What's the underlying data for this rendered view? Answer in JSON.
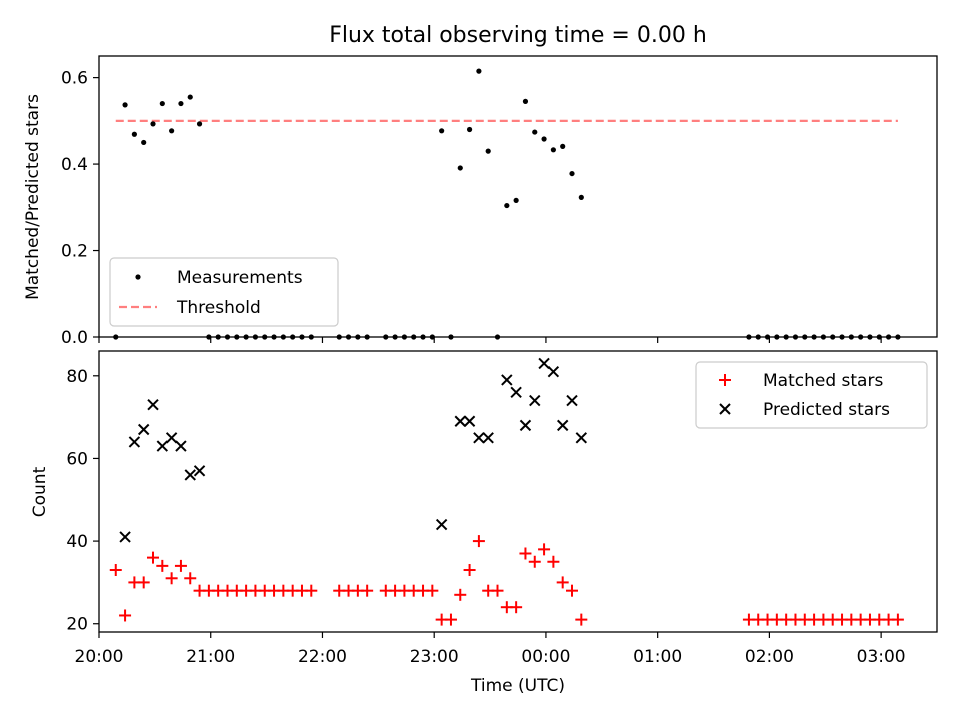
{
  "chart_data": [
    {
      "type": "scatter",
      "title": "Flux total observing time = 0.00 h",
      "xlabel": "",
      "ylabel": "Matched/Predicted stars",
      "ylim": [
        0,
        0.65
      ],
      "yticks": [
        0.0,
        0.2,
        0.4,
        0.6
      ],
      "ytick_labels": [
        "0.0",
        "0.2",
        "0.4",
        "0.6"
      ],
      "xlim": [
        "20:00",
        "03:30"
      ],
      "legend": "lower-left",
      "series": [
        {
          "name": "Measurements",
          "color": "#000000",
          "x": [
            "20:09",
            "20:14",
            "20:19",
            "20:24",
            "20:29",
            "20:34",
            "20:39",
            "20:44",
            "20:49",
            "20:54",
            "20:59",
            "21:04",
            "21:09",
            "21:14",
            "21:19",
            "21:24",
            "21:29",
            "21:34",
            "21:39",
            "21:44",
            "21:49",
            "21:54",
            "22:09",
            "22:14",
            "22:19",
            "22:24",
            "22:34",
            "22:39",
            "22:44",
            "22:49",
            "22:54",
            "22:59",
            "23:04",
            "23:09",
            "23:14",
            "23:19",
            "23:24",
            "23:29",
            "23:34",
            "23:39",
            "23:44",
            "23:49",
            "23:54",
            "23:59",
            "00:04",
            "00:09",
            "00:14",
            "00:19",
            "01:49",
            "01:54",
            "01:59",
            "02:04",
            "02:09",
            "02:14",
            "02:19",
            "02:24",
            "02:29",
            "02:34",
            "02:39",
            "02:44",
            "02:49",
            "02:54",
            "02:59",
            "03:04",
            "03:09"
          ],
          "y": [
            0.0,
            0.537,
            0.469,
            0.45,
            0.493,
            0.54,
            0.477,
            0.54,
            0.555,
            0.493,
            0.0,
            0.0,
            0.0,
            0.0,
            0.0,
            0.0,
            0.0,
            0.0,
            0.0,
            0.0,
            0.0,
            0.0,
            0.0,
            0.0,
            0.0,
            0.0,
            0.0,
            0.0,
            0.0,
            0.0,
            0.0,
            0.0,
            0.477,
            0.0,
            0.391,
            0.48,
            0.615,
            0.43,
            0.0,
            0.304,
            0.316,
            0.545,
            0.474,
            0.458,
            0.433,
            0.441,
            0.378,
            0.323,
            0.0,
            0.0,
            0.0,
            0.0,
            0.0,
            0.0,
            0.0,
            0.0,
            0.0,
            0.0,
            0.0,
            0.0,
            0.0,
            0.0,
            0.0,
            0.0,
            0.0
          ]
        },
        {
          "name": "Threshold",
          "color": "#ff7f7f",
          "x": [
            "20:09",
            "03:09"
          ],
          "y": [
            0.5,
            0.5
          ]
        }
      ]
    },
    {
      "type": "scatter",
      "xlabel": "Time (UTC)",
      "ylabel": "Count",
      "ylim": [
        18,
        86
      ],
      "yticks": [
        20,
        40,
        60,
        80
      ],
      "ytick_labels": [
        "20",
        "40",
        "60",
        "80"
      ],
      "xlim": [
        "20:00",
        "03:30"
      ],
      "xticks": [
        "20:00",
        "21:00",
        "22:00",
        "23:00",
        "00:00",
        "01:00",
        "02:00",
        "03:00"
      ],
      "legend": "upper-right",
      "series": [
        {
          "name": "Matched stars",
          "color": "#ff0000",
          "x": [
            "20:09",
            "20:14",
            "20:19",
            "20:24",
            "20:29",
            "20:34",
            "20:39",
            "20:44",
            "20:49",
            "20:54",
            "20:59",
            "21:04",
            "21:09",
            "21:14",
            "21:19",
            "21:24",
            "21:29",
            "21:34",
            "21:39",
            "21:44",
            "21:49",
            "21:54",
            "22:09",
            "22:14",
            "22:19",
            "22:24",
            "22:34",
            "22:39",
            "22:44",
            "22:49",
            "22:54",
            "22:59",
            "23:04",
            "23:09",
            "23:14",
            "23:19",
            "23:24",
            "23:29",
            "23:34",
            "23:39",
            "23:44",
            "23:49",
            "23:54",
            "23:59",
            "00:04",
            "00:09",
            "00:14",
            "00:19",
            "01:49",
            "01:54",
            "01:59",
            "02:04",
            "02:09",
            "02:14",
            "02:19",
            "02:24",
            "02:29",
            "02:34",
            "02:39",
            "02:44",
            "02:49",
            "02:54",
            "02:59",
            "03:04",
            "03:09"
          ],
          "y": [
            33,
            22,
            30,
            30,
            36,
            34,
            31,
            34,
            31,
            28,
            28,
            28,
            28,
            28,
            28,
            28,
            28,
            28,
            28,
            28,
            28,
            28,
            28,
            28,
            28,
            28,
            28,
            28,
            28,
            28,
            28,
            28,
            21,
            21,
            27,
            33,
            40,
            28,
            28,
            24,
            24,
            37,
            35,
            38,
            35,
            30,
            28,
            21,
            21,
            21,
            21,
            21,
            21,
            21,
            21,
            21,
            21,
            21,
            21,
            21,
            21,
            21,
            21,
            21,
            21
          ]
        },
        {
          "name": "Predicted stars",
          "color": "#000000",
          "x": [
            "20:14",
            "20:19",
            "20:24",
            "20:29",
            "20:34",
            "20:39",
            "20:44",
            "20:49",
            "20:54",
            "23:04",
            "23:14",
            "23:19",
            "23:24",
            "23:29",
            "23:39",
            "23:44",
            "23:49",
            "23:54",
            "23:59",
            "00:04",
            "00:09",
            "00:14",
            "00:19"
          ],
          "y": [
            41,
            64,
            67,
            73,
            63,
            65,
            63,
            56,
            57,
            44,
            69,
            69,
            65,
            65,
            79,
            76,
            68,
            74,
            83,
            81,
            68,
            74,
            65
          ]
        }
      ]
    }
  ]
}
